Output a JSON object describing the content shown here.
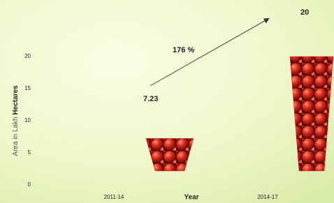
{
  "chart_data": {
    "type": "bar",
    "categories": [
      "2011-14",
      "2014-17"
    ],
    "values": [
      7.23,
      20
    ],
    "color": "#c8231c",
    "ylim": [
      0,
      20
    ],
    "yticks": [
      0,
      5,
      10,
      15,
      20
    ],
    "xlabel": "Year",
    "ylabel": [
      "Area in Lakh",
      "Hectares"
    ],
    "annotation": "176 %"
  }
}
